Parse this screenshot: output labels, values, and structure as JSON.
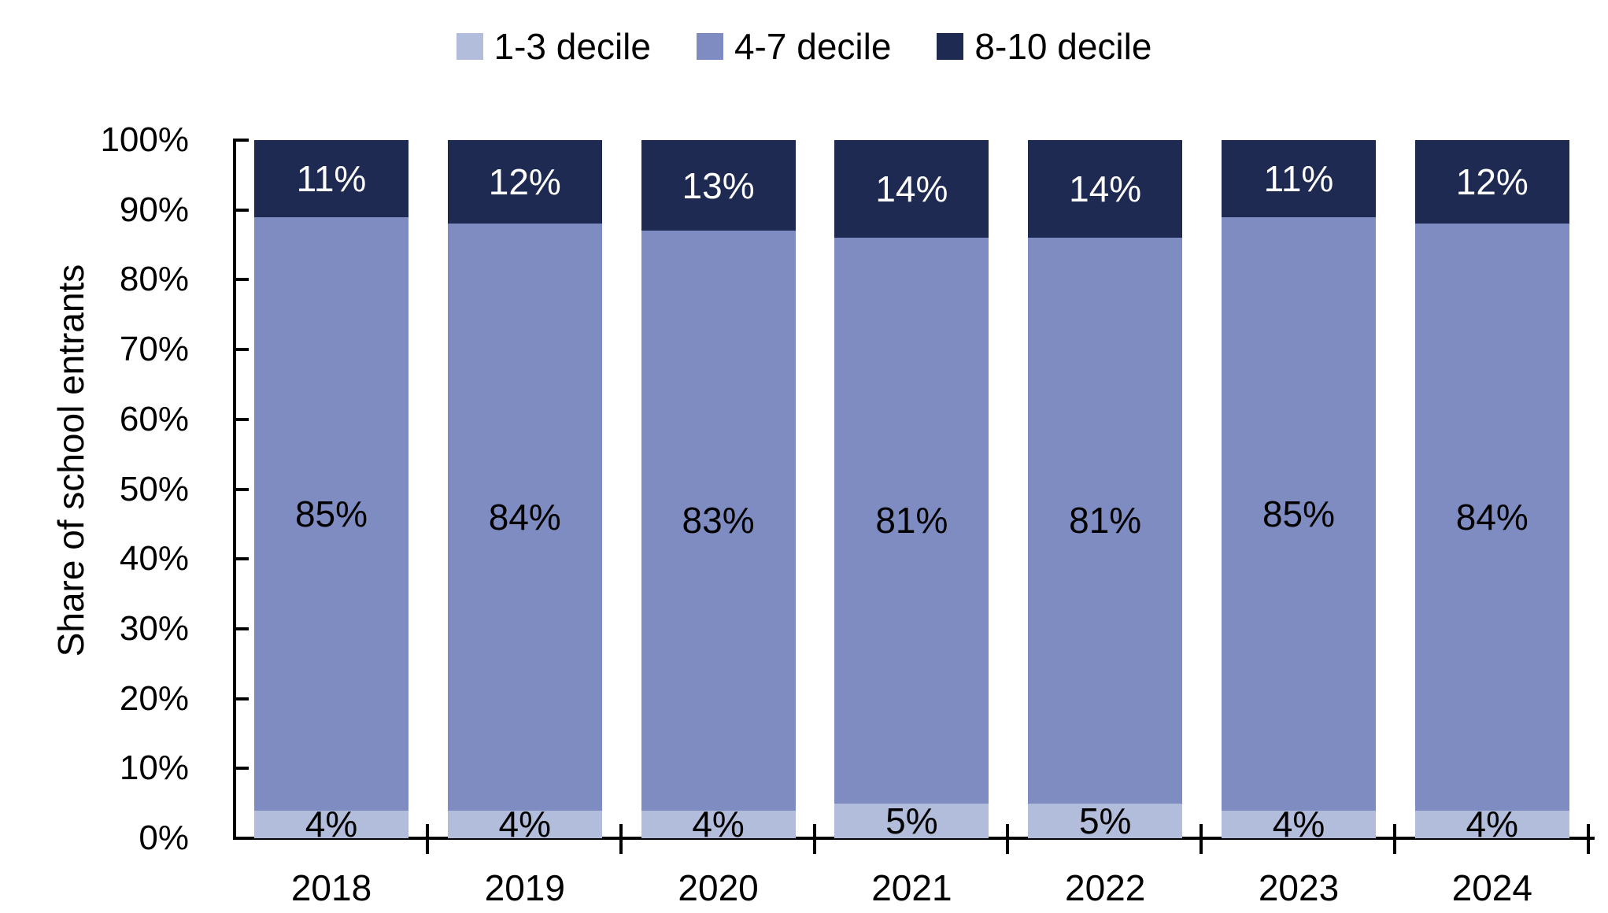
{
  "chart_data": {
    "type": "bar",
    "stacked": true,
    "title": "",
    "categories": [
      "2018",
      "2019",
      "2020",
      "2021",
      "2022",
      "2023",
      "2024"
    ],
    "series": [
      {
        "name": "1-3 decile",
        "color": "#b2bcdb",
        "label_color": "#000000",
        "values": [
          4,
          4,
          4,
          5,
          5,
          4,
          4
        ]
      },
      {
        "name": "4-7 decile",
        "color": "#7e8cc1",
        "label_color": "#000000",
        "values": [
          85,
          84,
          83,
          81,
          81,
          85,
          84
        ]
      },
      {
        "name": "8-10 decile",
        "color": "#1f2a52",
        "label_color": "#ffffff",
        "values": [
          11,
          12,
          13,
          14,
          14,
          11,
          12
        ]
      }
    ],
    "data_label_suffix": "%",
    "xlabel": "",
    "ylabel": "Share of school entrants",
    "ylim": [
      0,
      100
    ],
    "ytick_step": 10,
    "ytick_labels": [
      "0%",
      "10%",
      "20%",
      "30%",
      "40%",
      "50%",
      "60%",
      "70%",
      "80%",
      "90%",
      "100%"
    ],
    "legend_position": "top",
    "grid": false
  }
}
